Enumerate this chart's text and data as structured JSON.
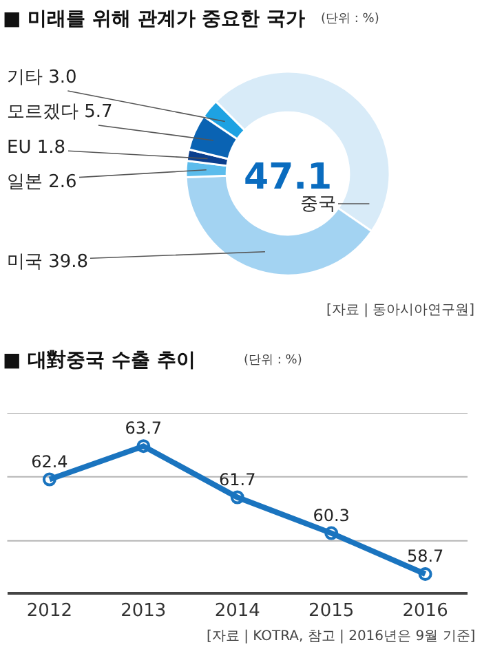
{
  "chart_data": [
    {
      "type": "donut",
      "title": "■ 미래를 위해 관계가 중요한 국가",
      "subtitle": "(단위 : %)",
      "categories": [
        "중국",
        "미국",
        "일본",
        "EU",
        "모르겠다",
        "기타"
      ],
      "values": [
        47.1,
        39.8,
        2.6,
        1.8,
        5.7,
        3.0
      ],
      "value_labels": [
        "47.1",
        "39.8",
        "2.6",
        "1.8",
        "5.7",
        "3.0"
      ],
      "colors": [
        "#d8ebf8",
        "#a3d3f2",
        "#5cbcec",
        "#0b3f8e",
        "#0a63b3",
        "#1ea2e2"
      ],
      "annotations": [
        "[자료 | 동아시아연구원]"
      ]
    },
    {
      "type": "line",
      "title": "■ 대對중국 수출 추이",
      "subtitle": "(단위 : %)",
      "categories": [
        "2012",
        "2013",
        "2014",
        "2015",
        "2016"
      ],
      "series": [
        {
          "color": "#1a74bf",
          "values": [
            62.4,
            63.7,
            61.7,
            60.3,
            58.7
          ]
        }
      ],
      "ylim": [
        58,
        65
      ],
      "ref_lines": [
        {
          "axis": "y",
          "value": 60,
          "color": "#b5b5b5"
        },
        {
          "axis": "y",
          "value": 62.5,
          "color": "#b5b5b5"
        },
        {
          "axis": "y",
          "value": 65,
          "color": "#b5b5b5"
        }
      ],
      "tick_labels": "x",
      "marker": "circle",
      "line_style": "solid",
      "data_labels": true,
      "annotations": [
        "[자료 | KOTRA, 참고 | 2016년은 9월 기준]"
      ]
    }
  ]
}
